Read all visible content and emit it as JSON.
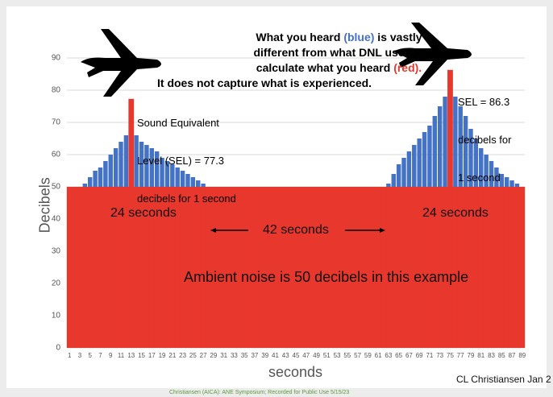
{
  "chart_data": {
    "type": "bar",
    "title_lines": [
      [
        "What you heard ",
        "(blue)",
        " is vastly"
      ],
      [
        "different from what DNL uses to"
      ],
      [
        "calculate what you heard ",
        "(red)."
      ]
    ],
    "subtitle": "It does not capture what is experienced.",
    "annotations": {
      "sel_left": [
        "Sound Equivalent",
        "Level (SEL) = 77.3",
        "decibels for 1 second"
      ],
      "sel_right": [
        "SEL = 86.3",
        "decibels for",
        "1 second"
      ],
      "duration_left": "24 seconds",
      "gap": "42 seconds",
      "duration_right": "24 seconds",
      "ambient": "Ambient noise is 50 decibels in this example",
      "credit": "CL Christiansen Jan 2",
      "footer": "Christiansen (AICA): ANE Symposium; Recorded for Public Use 5/15/23"
    },
    "xlabel": "seconds",
    "ylabel": "Decibels",
    "categories": [
      1,
      null,
      3,
      null,
      5,
      null,
      7,
      null,
      9,
      null,
      11,
      null,
      13,
      null,
      15,
      null,
      17,
      null,
      19,
      null,
      21,
      null,
      23,
      null,
      25,
      null,
      27,
      null,
      29,
      null,
      31,
      null,
      33,
      null,
      35,
      null,
      37,
      null,
      39,
      null,
      41,
      null,
      43,
      null,
      45,
      null,
      47,
      null,
      49,
      null,
      51,
      null,
      53,
      null,
      55,
      null,
      57,
      null,
      59,
      null,
      61,
      null,
      63,
      null,
      65,
      null,
      67,
      null,
      69,
      null,
      71,
      null,
      73,
      null,
      75,
      null,
      77,
      null,
      79,
      null,
      81,
      null,
      83,
      null,
      85,
      null,
      87,
      null,
      89
    ],
    "series": [
      {
        "color": "#4472c4",
        "values": [
          50,
          50,
          50,
          51,
          53,
          55,
          56,
          58,
          60,
          62,
          64,
          66,
          67,
          66,
          64,
          63,
          62,
          61,
          59,
          58,
          57,
          56,
          55,
          54,
          53,
          52,
          51,
          50,
          50,
          50,
          50,
          50,
          50,
          50,
          50,
          50,
          50,
          50,
          50,
          50,
          50,
          50,
          50,
          50,
          50,
          50,
          50,
          50,
          50,
          50,
          50,
          50,
          50,
          50,
          50,
          50,
          50,
          50,
          50,
          50,
          50,
          50,
          51,
          54,
          57,
          59,
          61,
          63,
          65,
          67,
          69,
          72,
          75,
          78,
          80,
          78,
          75,
          72,
          68,
          65,
          62,
          60,
          58,
          56,
          54,
          53,
          52,
          51,
          50
        ]
      },
      {
        "color": "#e8372c",
        "values": [
          50,
          50,
          50,
          50,
          50,
          50,
          50,
          50,
          50,
          50,
          50,
          50,
          77.3,
          50,
          50,
          50,
          50,
          50,
          50,
          50,
          50,
          50,
          50,
          50,
          50,
          50,
          50,
          50,
          50,
          50,
          50,
          50,
          50,
          50,
          50,
          50,
          50,
          50,
          50,
          50,
          50,
          50,
          50,
          50,
          50,
          50,
          50,
          50,
          50,
          50,
          50,
          50,
          50,
          50,
          50,
          50,
          50,
          50,
          50,
          50,
          50,
          50,
          50,
          50,
          50,
          50,
          50,
          50,
          50,
          50,
          50,
          50,
          50,
          50,
          86.3,
          50,
          50,
          50,
          50,
          50,
          50,
          50,
          50,
          50,
          50,
          50,
          50,
          50,
          50
        ]
      }
    ],
    "ylim": [
      0,
      90
    ],
    "yticks": [
      0,
      10,
      20,
      30,
      40,
      50,
      60,
      70,
      80,
      90
    ],
    "grid": true
  }
}
